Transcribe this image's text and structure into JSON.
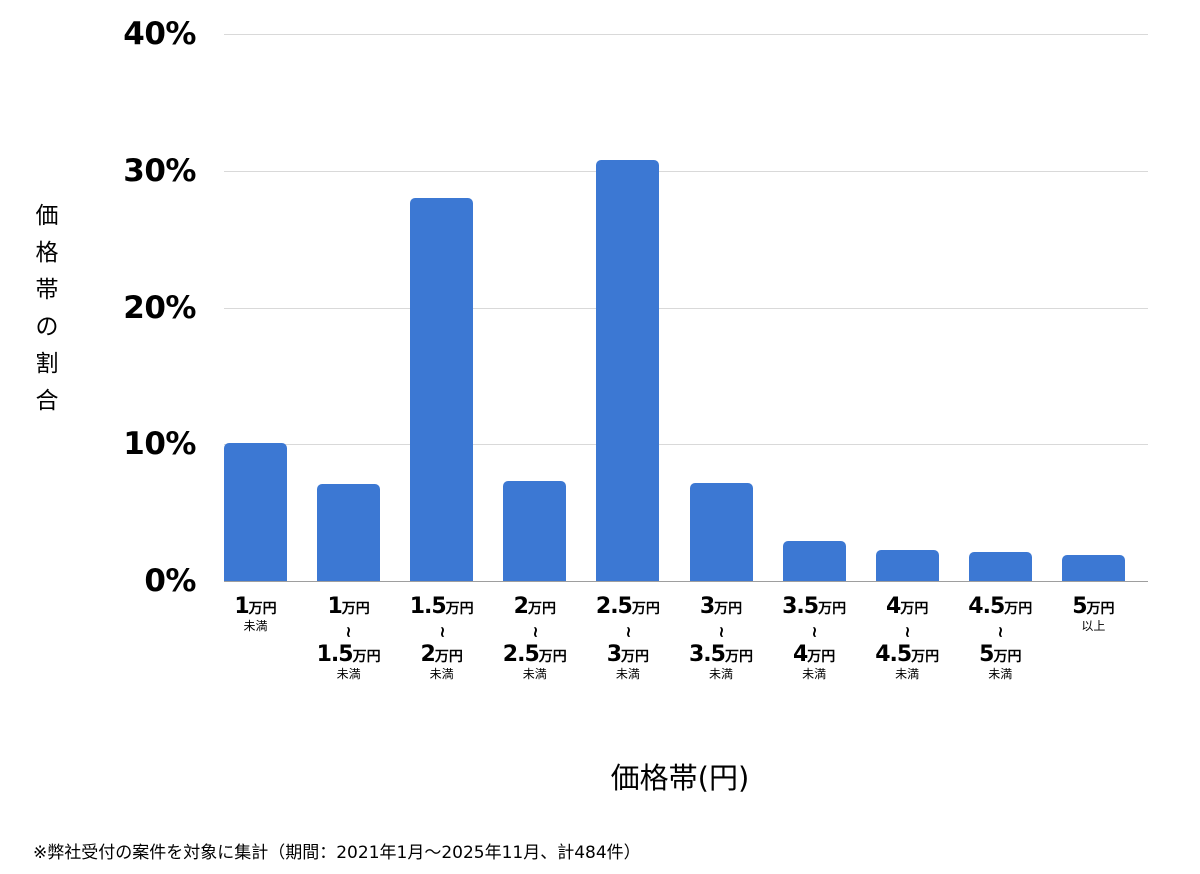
{
  "chart_data": {
    "type": "bar",
    "title": "",
    "xlabel": "価格帯(円)",
    "ylabel": "価格帯の割合",
    "ylim": [
      0,
      40
    ],
    "yticks": [
      "0%",
      "10%",
      "20%",
      "30%",
      "40%"
    ],
    "grid": true,
    "legend": null,
    "categories": [
      "1万円未満",
      "1万円〜1.5万円未満",
      "1.5万円〜2万円未満",
      "2万円〜2.5万円未満",
      "2.5万円〜3万円未満",
      "3万円〜3.5万円未満",
      "3.5万円〜4万円未満",
      "4万円〜4.5万円未満",
      "4.5万円〜5万円未満",
      "5万円以上"
    ],
    "values": [
      10.1,
      7.1,
      28.0,
      7.3,
      30.8,
      7.2,
      2.9,
      2.3,
      2.1,
      1.9
    ],
    "bar_color": "#3c78d3",
    "note": "※弊社受付の案件を対象に集計（期間：2021年1月〜2025年11月、計484件）"
  },
  "axis": {
    "y_ticks": [
      {
        "label": "40%",
        "value": 40
      },
      {
        "label": "30%",
        "value": 30
      },
      {
        "label": "20%",
        "value": 20
      },
      {
        "label": "10%",
        "value": 10
      },
      {
        "label": "0%",
        "value": 0
      }
    ],
    "y_title": "価\n格\n帯\nの\n割\n合",
    "x_title": "価格帯(円)"
  },
  "labels": [
    {
      "from": "1",
      "unit": "万円",
      "tilde": "",
      "to": "",
      "to_unit": "",
      "suffix": "未満"
    },
    {
      "from": "1",
      "unit": "万円",
      "tilde": "〜",
      "to": "1.5",
      "to_unit": "万円",
      "suffix": "未満"
    },
    {
      "from": "1.5",
      "unit": "万円",
      "tilde": "〜",
      "to": "2",
      "to_unit": "万円",
      "suffix": "未満"
    },
    {
      "from": "2",
      "unit": "万円",
      "tilde": "〜",
      "to": "2.5",
      "to_unit": "万円",
      "suffix": "未満"
    },
    {
      "from": "2.5",
      "unit": "万円",
      "tilde": "〜",
      "to": "3",
      "to_unit": "万円",
      "suffix": "未満"
    },
    {
      "from": "3",
      "unit": "万円",
      "tilde": "〜",
      "to": "3.5",
      "to_unit": "万円",
      "suffix": "未満"
    },
    {
      "from": "3.5",
      "unit": "万円",
      "tilde": "〜",
      "to": "4",
      "to_unit": "万円",
      "suffix": "未満"
    },
    {
      "from": "4",
      "unit": "万円",
      "tilde": "〜",
      "to": "4.5",
      "to_unit": "万円",
      "suffix": "未満"
    },
    {
      "from": "4.5",
      "unit": "万円",
      "tilde": "〜",
      "to": "5",
      "to_unit": "万円",
      "suffix": "未満"
    },
    {
      "from": "5",
      "unit": "万円",
      "tilde": "",
      "to": "",
      "to_unit": "",
      "suffix": "以上"
    }
  ],
  "footnote": "※弊社受付の案件を対象に集計（期間：2021年1月〜2025年11月、計484件）"
}
